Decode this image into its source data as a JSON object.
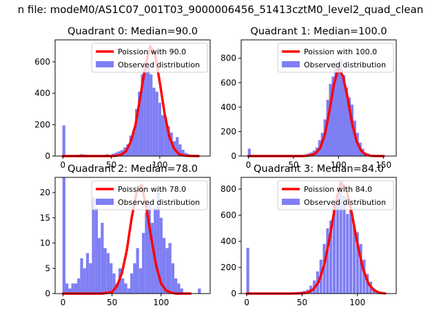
{
  "figure": {
    "title": "n file: modeM0/AS1C07_001T03_9000006456_51413cztM0_level2_quad_clean"
  },
  "colors": {
    "hist": "#7f7ff4",
    "curve": "#ff0000",
    "axis": "#000000",
    "background": "#ffffff"
  },
  "chart_data": [
    {
      "type": "bar",
      "title": "Quadrant 0: Median=90.0",
      "xlim": [
        -8,
        152
      ],
      "ylim": [
        0,
        740
      ],
      "xticks": [
        0,
        50,
        100
      ],
      "yticks": [
        0,
        200,
        400,
        600
      ],
      "legend": {
        "placement": "top-right",
        "entries": [
          "Poission with 90.0",
          "Observed distribution"
        ]
      },
      "bin_width": 3,
      "hist": {
        "x": [
          1,
          4,
          7,
          10,
          13,
          16,
          19,
          22,
          25,
          28,
          31,
          34,
          37,
          40,
          43,
          46,
          49,
          52,
          55,
          58,
          61,
          64,
          67,
          70,
          73,
          76,
          79,
          82,
          85,
          88,
          91,
          94,
          97,
          100,
          103,
          106,
          109,
          112,
          115,
          118,
          121,
          124,
          127,
          130,
          133,
          136,
          139,
          142
        ],
        "values": [
          195,
          5,
          3,
          5,
          3,
          8,
          12,
          10,
          8,
          6,
          4,
          3,
          4,
          6,
          8,
          12,
          6,
          15,
          22,
          30,
          38,
          55,
          75,
          130,
          155,
          300,
          410,
          520,
          580,
          570,
          520,
          435,
          410,
          340,
          260,
          250,
          190,
          150,
          95,
          120,
          75,
          40,
          20,
          12,
          6,
          3,
          2,
          1
        ]
      },
      "curve": {
        "name": "Poission with 90.0",
        "x": [
          0,
          10,
          20,
          30,
          40,
          50,
          55,
          60,
          65,
          70,
          75,
          80,
          85,
          90,
          95,
          100,
          105,
          110,
          115,
          120,
          125,
          130,
          140
        ],
        "y": [
          0,
          0,
          0,
          0,
          0,
          0,
          2,
          8,
          30,
          90,
          200,
          380,
          570,
          700,
          650,
          470,
          270,
          120,
          45,
          12,
          3,
          1,
          0
        ]
      }
    },
    {
      "type": "bar",
      "title": "Quadrant 1: Median=100.0",
      "xlim": [
        -8,
        164
      ],
      "ylim": [
        0,
        950
      ],
      "xticks": [
        0,
        50,
        100,
        150
      ],
      "yticks": [
        0,
        200,
        400,
        600,
        800
      ],
      "legend": {
        "placement": "top-right",
        "entries": [
          "Poission with 100.0",
          "Observed distribution"
        ]
      },
      "bin_width": 3.2,
      "hist": {
        "x": [
          1,
          4,
          7,
          10,
          13,
          16,
          19,
          22,
          25,
          28,
          31,
          34,
          37,
          40,
          43,
          46,
          49,
          52,
          55,
          58,
          61,
          64,
          67,
          70,
          73,
          76,
          79,
          82,
          85,
          88,
          91,
          94,
          97,
          100,
          103,
          106,
          109,
          112,
          115,
          118,
          121,
          124,
          127,
          130,
          133,
          136,
          139,
          142,
          145,
          148
        ],
        "values": [
          60,
          3,
          2,
          2,
          2,
          3,
          4,
          3,
          2,
          3,
          2,
          3,
          2,
          3,
          3,
          4,
          5,
          5,
          6,
          8,
          10,
          15,
          22,
          30,
          45,
          70,
          130,
          190,
          300,
          460,
          590,
          650,
          770,
          700,
          790,
          660,
          560,
          480,
          420,
          290,
          190,
          110,
          60,
          30,
          20,
          10,
          5,
          3,
          2,
          1
        ]
      },
      "curve": {
        "name": "Poission with 100.0",
        "x": [
          0,
          20,
          40,
          60,
          65,
          70,
          75,
          80,
          85,
          90,
          95,
          100,
          105,
          110,
          115,
          120,
          125,
          130,
          135,
          140,
          150
        ],
        "y": [
          0,
          0,
          0,
          0,
          2,
          8,
          25,
          70,
          180,
          370,
          590,
          720,
          650,
          480,
          270,
          120,
          45,
          12,
          3,
          1,
          0
        ]
      }
    },
    {
      "type": "bar",
      "title": "Quadrant 2: Median=78.0",
      "xlim": [
        -8,
        150
      ],
      "ylim": [
        0,
        23
      ],
      "xticks": [
        0,
        50,
        100
      ],
      "yticks": [
        0,
        5,
        10,
        15,
        20
      ],
      "legend": {
        "placement": "top-right",
        "entries": [
          "Poission with 78.0",
          "Observed distribution"
        ]
      },
      "bin_width": 3,
      "hist": {
        "x": [
          1,
          4,
          7,
          10,
          13,
          16,
          19,
          22,
          25,
          28,
          31,
          34,
          37,
          40,
          43,
          46,
          49,
          52,
          55,
          58,
          61,
          64,
          67,
          70,
          73,
          76,
          79,
          82,
          85,
          88,
          91,
          94,
          97,
          100,
          103,
          106,
          109,
          112,
          115,
          118,
          121,
          124,
          127,
          130,
          133,
          136,
          139
        ],
        "values": [
          23,
          2,
          1,
          2,
          2,
          3,
          7,
          5,
          8,
          6,
          19,
          17,
          11,
          14,
          9,
          8,
          6,
          4,
          2,
          5,
          3,
          2,
          1,
          4,
          6,
          9,
          5,
          12,
          16,
          18,
          14,
          17,
          20,
          15,
          11,
          9,
          10,
          6,
          3,
          2,
          1,
          0,
          0,
          0,
          0,
          0,
          1
        ]
      },
      "curve": {
        "name": "Poission with 78.0",
        "x": [
          0,
          20,
          40,
          50,
          55,
          60,
          65,
          70,
          75,
          80,
          85,
          90,
          95,
          100,
          105,
          110,
          115,
          120,
          130
        ],
        "y": [
          0,
          0,
          0,
          0.3,
          1.5,
          4,
          8.5,
          15,
          20,
          21.5,
          17,
          11,
          5.5,
          2,
          0.6,
          0.2,
          0,
          0,
          0
        ]
      }
    },
    {
      "type": "bar",
      "title": "Quadrant 3: Median=84.0",
      "xlim": [
        -5,
        135
      ],
      "ylim": [
        0,
        890
      ],
      "xticks": [
        0,
        50,
        100
      ],
      "yticks": [
        0,
        200,
        400,
        600,
        800
      ],
      "legend": {
        "placement": "top-right",
        "entries": [
          "Poission with 84.0",
          "Observed distribution"
        ]
      },
      "bin_width": 2.6,
      "hist": {
        "x": [
          1,
          4,
          7,
          10,
          13,
          16,
          19,
          22,
          25,
          28,
          31,
          34,
          37,
          40,
          43,
          46,
          49,
          52,
          55,
          58,
          61,
          64,
          67,
          70,
          73,
          76,
          79,
          82,
          85,
          88,
          91,
          94,
          97,
          100,
          103,
          106,
          109,
          112,
          115,
          118,
          121,
          124,
          127
        ],
        "values": [
          350,
          3,
          2,
          2,
          3,
          3,
          4,
          5,
          4,
          5,
          6,
          5,
          6,
          8,
          10,
          12,
          15,
          20,
          30,
          60,
          100,
          170,
          260,
          380,
          500,
          560,
          680,
          760,
          860,
          750,
          610,
          660,
          520,
          470,
          380,
          260,
          150,
          90,
          40,
          20,
          10,
          4,
          2
        ]
      },
      "curve": {
        "name": "Poission with 84.0",
        "x": [
          0,
          20,
          40,
          50,
          55,
          60,
          65,
          70,
          75,
          80,
          85,
          90,
          95,
          100,
          105,
          110,
          115,
          120,
          125
        ],
        "y": [
          0,
          0,
          0,
          2,
          8,
          30,
          90,
          220,
          430,
          680,
          850,
          800,
          610,
          380,
          190,
          75,
          25,
          6,
          1
        ]
      }
    }
  ]
}
